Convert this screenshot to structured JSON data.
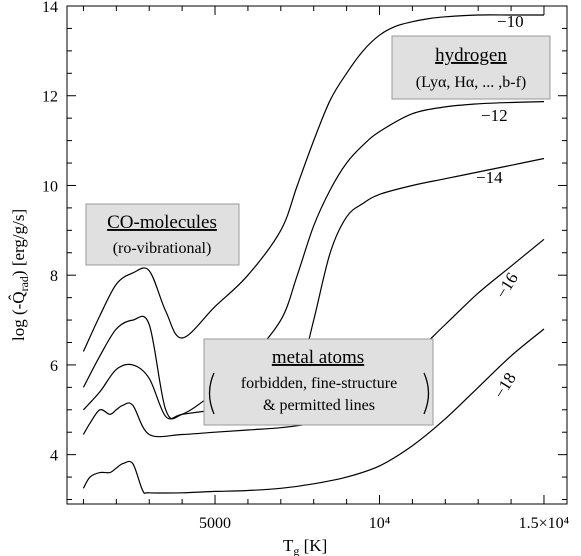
{
  "chart_data": {
    "type": "line",
    "title": "",
    "xlabel": "Tg [K]",
    "ylabel": "log (-Q̂rad) [erg/g/s]",
    "xlim": [
      500,
      15700
    ],
    "ylim": [
      2.9,
      14
    ],
    "grid": false,
    "x_tick_labels": [
      "5000",
      "10⁴",
      "1.5×10⁴"
    ],
    "y_tick_labels": [
      "4",
      "6",
      "8",
      "10",
      "12",
      "14"
    ],
    "series": [
      {
        "name": "−10",
        "x": [
          1000,
          1500,
          2000,
          2500,
          3000,
          3500,
          4000,
          5000,
          6000,
          7000,
          7500,
          8000,
          8500,
          9000,
          9500,
          10000,
          10500,
          11000,
          11500,
          12000,
          13000,
          14000,
          15000
        ],
        "y": [
          6.3,
          7.1,
          7.8,
          8.05,
          8.1,
          7.2,
          6.6,
          7.3,
          8.0,
          9.0,
          10.0,
          11.0,
          11.9,
          12.5,
          13.0,
          13.35,
          13.55,
          13.65,
          13.72,
          13.76,
          13.8,
          13.8,
          13.8
        ]
      },
      {
        "name": "−12",
        "x": [
          1000,
          1500,
          2000,
          2500,
          3000,
          3500,
          4000,
          5000,
          6000,
          7000,
          7500,
          8000,
          8500,
          9000,
          9500,
          10000,
          11000,
          12000,
          13000,
          14000,
          15000
        ],
        "y": [
          5.5,
          6.2,
          6.8,
          7.0,
          6.9,
          5.0,
          4.9,
          5.4,
          6.1,
          7.0,
          8.0,
          9.1,
          9.9,
          10.5,
          10.9,
          11.2,
          11.6,
          11.75,
          11.82,
          11.85,
          11.87
        ]
      },
      {
        "name": "−14",
        "x": [
          1000,
          1500,
          2000,
          2500,
          3000,
          3500,
          4000,
          5000,
          6000,
          7000,
          7500,
          8000,
          8500,
          9000,
          9500,
          10000,
          11000,
          12000,
          13000,
          14000,
          15000
        ],
        "y": [
          5.0,
          5.4,
          5.9,
          6.0,
          5.7,
          4.85,
          4.9,
          5.0,
          5.1,
          5.2,
          5.6,
          7.0,
          8.5,
          9.3,
          9.6,
          9.8,
          10.0,
          10.15,
          10.3,
          10.45,
          10.6
        ]
      },
      {
        "name": "−16",
        "x": [
          1000,
          1200,
          1500,
          1800,
          2000,
          2200,
          2500,
          3000,
          4000,
          5000,
          6000,
          7000,
          8000,
          8500,
          9000,
          9500,
          10000,
          11000,
          12000,
          13000,
          14000,
          15000
        ],
        "y": [
          4.45,
          4.7,
          5.0,
          4.9,
          5.0,
          5.1,
          5.1,
          4.45,
          4.45,
          4.5,
          4.55,
          4.6,
          4.7,
          4.8,
          5.0,
          5.3,
          5.6,
          6.2,
          6.9,
          7.6,
          8.2,
          8.8
        ]
      },
      {
        "name": "−18",
        "x": [
          1000,
          1200,
          1500,
          1800,
          2000,
          2200,
          2500,
          2800,
          3000,
          4000,
          5000,
          6000,
          7000,
          8000,
          9000,
          10000,
          11000,
          12000,
          13000,
          14000,
          15000
        ],
        "y": [
          3.25,
          3.5,
          3.6,
          3.6,
          3.7,
          3.8,
          3.8,
          3.2,
          3.15,
          3.15,
          3.18,
          3.2,
          3.25,
          3.35,
          3.5,
          3.75,
          4.2,
          4.8,
          5.5,
          6.2,
          6.8
        ]
      }
    ],
    "annotations": [
      {
        "title": "hydrogen",
        "subtitle": "(Lyα, Hα, ... ,b-f)"
      },
      {
        "title": "CO-molecules",
        "subtitle": "(ro-vibrational)"
      },
      {
        "title": "metal atoms",
        "subtitle_lines": [
          "forbidden, fine-structure",
          "& permitted lines"
        ]
      }
    ]
  }
}
